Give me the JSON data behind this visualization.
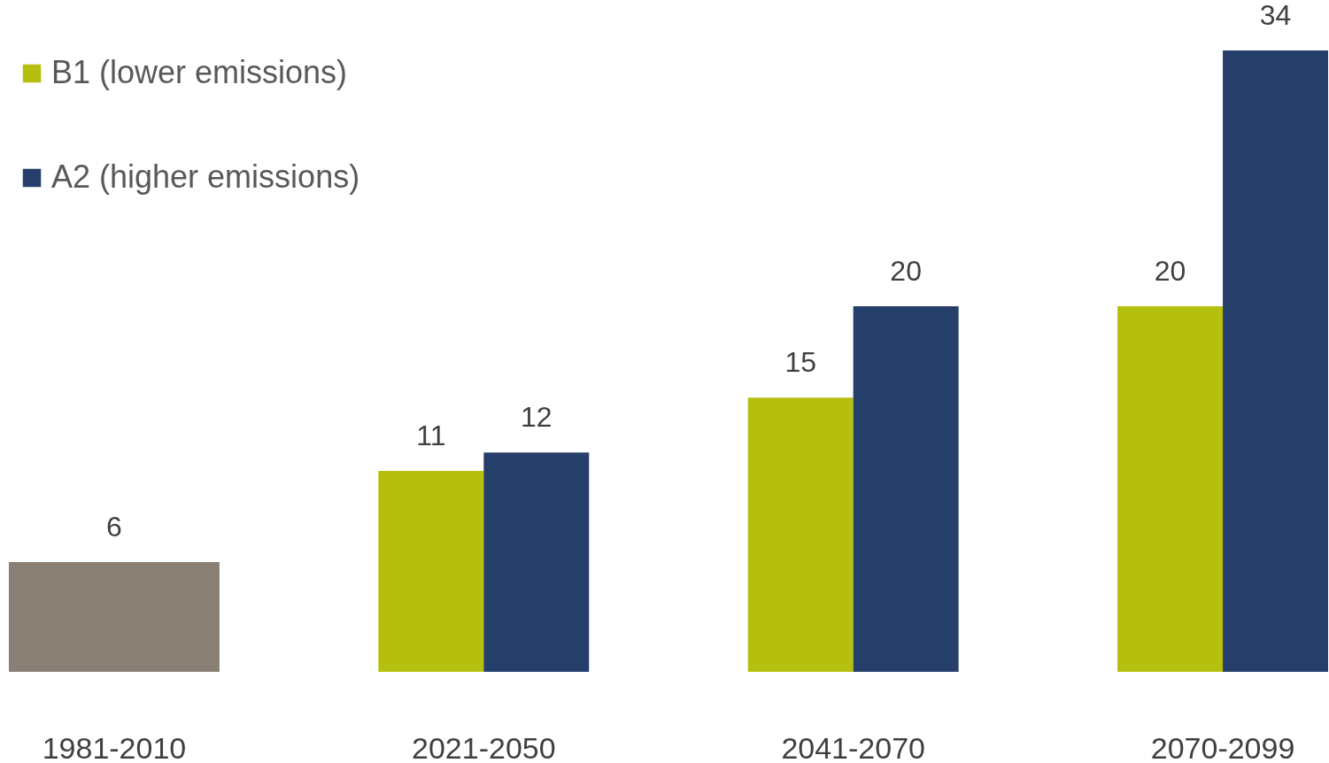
{
  "chart_data": {
    "type": "bar",
    "categories": [
      "1981-2010",
      "2021-2050",
      "2041-2070",
      "2070-2099"
    ],
    "series": [
      {
        "color": "#8a7f74",
        "values": [
          6,
          null,
          null,
          null
        ]
      },
      {
        "name": "B1 (lower emissions)",
        "color": "#b5bf0e",
        "values": [
          null,
          11,
          15,
          20
        ]
      },
      {
        "name": "A2 (higher emissions)",
        "color": "#263e6a",
        "values": [
          null,
          12,
          20,
          34
        ]
      }
    ],
    "data_labels": true,
    "legend": "top left"
  }
}
